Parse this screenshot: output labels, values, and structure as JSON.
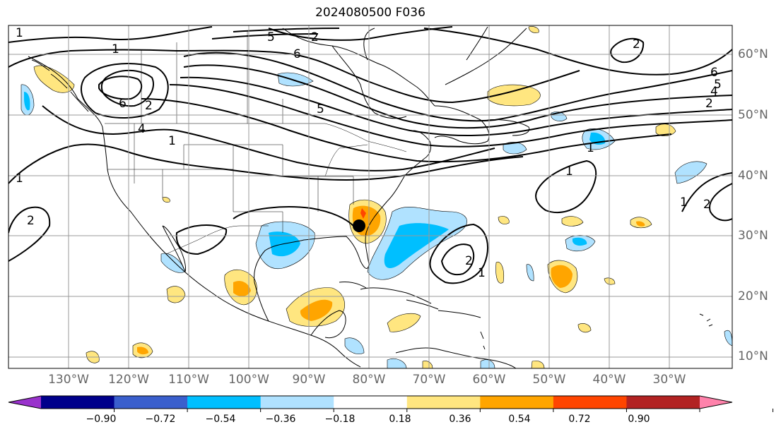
{
  "title": "2024080500 F036",
  "lat_labels": [
    "60°N",
    "50°N",
    "40°N",
    "30°N",
    "20°N",
    "10°N"
  ],
  "lon_labels": [
    "130°W",
    "120°W",
    "110°W",
    "100°W",
    "90°W",
    "80°W",
    "70°W",
    "60°W",
    "50°W",
    "40°W",
    "30°W"
  ],
  "contour_labels": [
    "1",
    "1",
    "2",
    "5",
    "6",
    "6",
    "5",
    "4",
    "1",
    "2",
    "2",
    "1",
    "1",
    "1",
    "2",
    "6",
    "5",
    "4",
    "2",
    "1",
    "1",
    "2",
    "2"
  ],
  "colorbar": {
    "ticks": [
      "−0.90",
      "−0.72",
      "−0.54",
      "−0.36",
      "−0.18",
      "0.18",
      "0.36",
      "0.54",
      "0.72",
      "0.90"
    ],
    "colors": [
      "#9932cc",
      "#00008b",
      "#3a5fcd",
      "#00bfff",
      "#b0e2ff",
      "#ffffff",
      "#ffe680",
      "#ffa500",
      "#ff4500",
      "#b22222",
      "#ff82ab"
    ]
  }
}
